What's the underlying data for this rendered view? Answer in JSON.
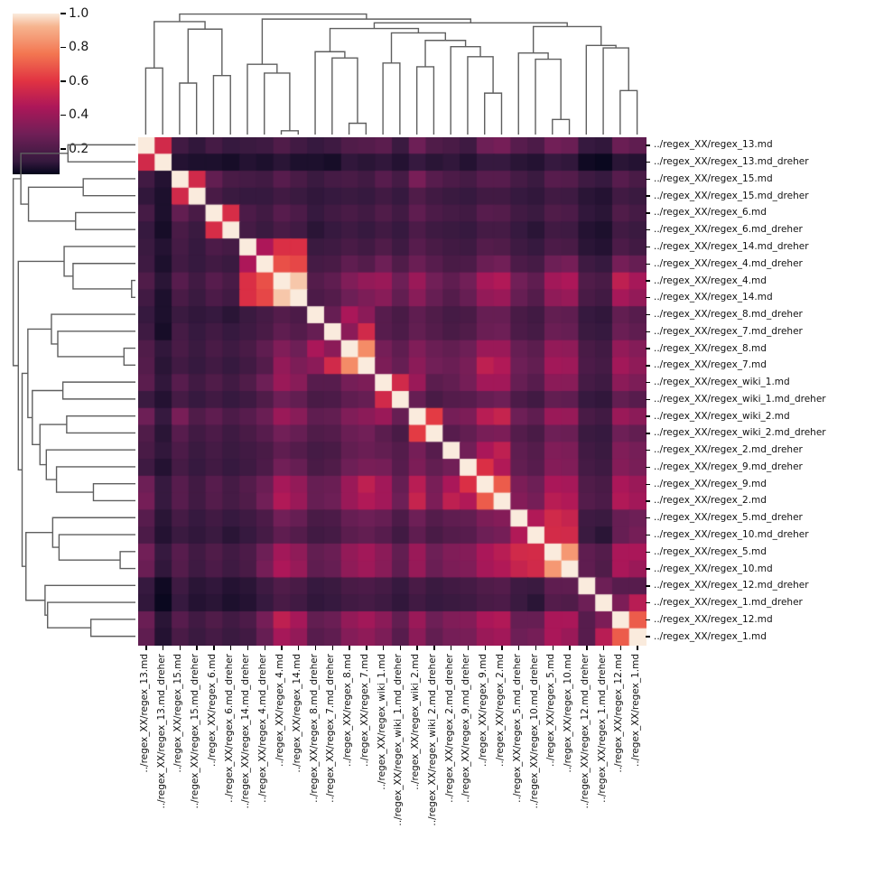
{
  "figure_title": "",
  "colorbar": {
    "tick_labels": [
      "1.0",
      "0.8",
      "0.6",
      "0.4",
      "0.2"
    ],
    "tick_values": [
      1.0,
      0.8,
      0.6,
      0.4,
      0.2
    ]
  },
  "chart_data": {
    "type": "heatmap",
    "subtype": "clustermap",
    "colormap": "rocket",
    "value_range": [
      0.05,
      1.0
    ],
    "legend_position": "top-left-colorbar",
    "grid": false,
    "labels": [
      "../regex_XX/regex_13.md",
      "../regex_XX/regex_13.md_dreher",
      "../regex_XX/regex_15.md",
      "../regex_XX/regex_15.md_dreher",
      "../regex_XX/regex_6.md",
      "../regex_XX/regex_6.md_dreher",
      "../regex_XX/regex_14.md_dreher",
      "../regex_XX/regex_4.md_dreher",
      "../regex_XX/regex_4.md",
      "../regex_XX/regex_14.md",
      "../regex_XX/regex_8.md_dreher",
      "../regex_XX/regex_7.md_dreher",
      "../regex_XX/regex_8.md",
      "../regex_XX/regex_7.md",
      "../regex_XX/regex_wiki_1.md",
      "../regex_XX/regex_wiki_1.md_dreher",
      "../regex_XX/regex_wiki_2.md",
      "../regex_XX/regex_wiki_2.md_dreher",
      "../regex_XX/regex_2.md_dreher",
      "../regex_XX/regex_9.md_dreher",
      "../regex_XX/regex_9.md",
      "../regex_XX/regex_2.md",
      "../regex_XX/regex_5.md_dreher",
      "../regex_XX/regex_10.md_dreher",
      "../regex_XX/regex_5.md",
      "../regex_XX/regex_10.md",
      "../regex_XX/regex_12.md_dreher",
      "../regex_XX/regex_1.md_dreher",
      "../regex_XX/regex_12.md",
      "../regex_XX/regex_1.md"
    ],
    "matrix_upper": [
      [
        1.0,
        0.55,
        0.16,
        0.12,
        0.17,
        0.13,
        0.14,
        0.15,
        0.2,
        0.16,
        0.13,
        0.15,
        0.2,
        0.21,
        0.23,
        0.14,
        0.28,
        0.2,
        0.18,
        0.15,
        0.28,
        0.3,
        0.22,
        0.19,
        0.29,
        0.27,
        0.13,
        0.12,
        0.27,
        0.24
      ],
      [
        1.0,
        0.1,
        0.09,
        0.09,
        0.08,
        0.1,
        0.09,
        0.11,
        0.09,
        0.09,
        0.08,
        0.12,
        0.11,
        0.12,
        0.1,
        0.13,
        0.11,
        0.12,
        0.1,
        0.13,
        0.13,
        0.11,
        0.1,
        0.13,
        0.12,
        0.07,
        0.06,
        0.11,
        0.1
      ],
      [
        1.0,
        0.55,
        0.25,
        0.18,
        0.17,
        0.16,
        0.22,
        0.18,
        0.14,
        0.17,
        0.18,
        0.16,
        0.22,
        0.17,
        0.31,
        0.22,
        0.19,
        0.17,
        0.22,
        0.22,
        0.17,
        0.14,
        0.22,
        0.21,
        0.15,
        0.13,
        0.22,
        0.18
      ],
      [
        1.0,
        0.18,
        0.14,
        0.13,
        0.13,
        0.16,
        0.14,
        0.12,
        0.13,
        0.14,
        0.13,
        0.16,
        0.13,
        0.2,
        0.16,
        0.14,
        0.13,
        0.16,
        0.16,
        0.13,
        0.12,
        0.16,
        0.15,
        0.11,
        0.1,
        0.16,
        0.14
      ],
      [
        1.0,
        0.57,
        0.19,
        0.16,
        0.22,
        0.19,
        0.13,
        0.16,
        0.18,
        0.16,
        0.2,
        0.16,
        0.24,
        0.19,
        0.17,
        0.16,
        0.22,
        0.21,
        0.16,
        0.14,
        0.2,
        0.19,
        0.12,
        0.11,
        0.2,
        0.17
      ],
      [
        1.0,
        0.17,
        0.14,
        0.18,
        0.16,
        0.11,
        0.13,
        0.15,
        0.13,
        0.16,
        0.13,
        0.19,
        0.15,
        0.14,
        0.13,
        0.17,
        0.17,
        0.13,
        0.11,
        0.16,
        0.15,
        0.1,
        0.09,
        0.16,
        0.14
      ],
      [
        1.0,
        0.45,
        0.58,
        0.58,
        0.14,
        0.15,
        0.18,
        0.16,
        0.2,
        0.15,
        0.22,
        0.18,
        0.16,
        0.15,
        0.21,
        0.2,
        0.15,
        0.13,
        0.19,
        0.18,
        0.11,
        0.1,
        0.19,
        0.16
      ],
      [
        1.0,
        0.67,
        0.65,
        0.17,
        0.18,
        0.24,
        0.21,
        0.28,
        0.2,
        0.27,
        0.22,
        0.18,
        0.19,
        0.27,
        0.29,
        0.19,
        0.17,
        0.28,
        0.3,
        0.15,
        0.13,
        0.3,
        0.26
      ],
      [
        1.0,
        0.95,
        0.21,
        0.24,
        0.33,
        0.38,
        0.4,
        0.28,
        0.4,
        0.29,
        0.24,
        0.29,
        0.43,
        0.46,
        0.29,
        0.24,
        0.42,
        0.45,
        0.2,
        0.18,
        0.5,
        0.43
      ],
      [
        1.0,
        0.19,
        0.21,
        0.28,
        0.32,
        0.35,
        0.25,
        0.35,
        0.26,
        0.21,
        0.26,
        0.38,
        0.4,
        0.26,
        0.21,
        0.37,
        0.39,
        0.18,
        0.16,
        0.43,
        0.38
      ],
      [
        1.0,
        0.26,
        0.44,
        0.36,
        0.22,
        0.18,
        0.24,
        0.2,
        0.17,
        0.18,
        0.26,
        0.26,
        0.18,
        0.16,
        0.25,
        0.24,
        0.13,
        0.12,
        0.25,
        0.22
      ],
      [
        1.0,
        0.36,
        0.55,
        0.22,
        0.19,
        0.25,
        0.21,
        0.18,
        0.2,
        0.27,
        0.28,
        0.19,
        0.17,
        0.27,
        0.26,
        0.14,
        0.13,
        0.27,
        0.24
      ],
      [
        1.0,
        0.82,
        0.3,
        0.24,
        0.33,
        0.27,
        0.25,
        0.28,
        0.4,
        0.4,
        0.26,
        0.23,
        0.38,
        0.37,
        0.18,
        0.16,
        0.38,
        0.34
      ],
      [
        1.0,
        0.32,
        0.26,
        0.36,
        0.29,
        0.27,
        0.31,
        0.5,
        0.46,
        0.28,
        0.25,
        0.42,
        0.41,
        0.19,
        0.17,
        0.42,
        0.37
      ],
      [
        1.0,
        0.55,
        0.4,
        0.23,
        0.25,
        0.3,
        0.42,
        0.42,
        0.26,
        0.22,
        0.36,
        0.35,
        0.17,
        0.15,
        0.36,
        0.32
      ],
      [
        1.0,
        0.26,
        0.18,
        0.21,
        0.22,
        0.26,
        0.28,
        0.19,
        0.16,
        0.25,
        0.24,
        0.13,
        0.12,
        0.25,
        0.22
      ],
      [
        1.0,
        0.62,
        0.3,
        0.32,
        0.48,
        0.52,
        0.28,
        0.24,
        0.4,
        0.39,
        0.18,
        0.16,
        0.4,
        0.36
      ],
      [
        1.0,
        0.22,
        0.25,
        0.31,
        0.32,
        0.21,
        0.18,
        0.28,
        0.27,
        0.14,
        0.13,
        0.28,
        0.25
      ],
      [
        1.0,
        0.29,
        0.44,
        0.5,
        0.24,
        0.21,
        0.33,
        0.32,
        0.16,
        0.14,
        0.33,
        0.3
      ],
      [
        1.0,
        0.58,
        0.46,
        0.25,
        0.22,
        0.34,
        0.33,
        0.17,
        0.15,
        0.34,
        0.31
      ],
      [
        1.0,
        0.7,
        0.32,
        0.28,
        0.44,
        0.43,
        0.2,
        0.18,
        0.44,
        0.4
      ],
      [
        1.0,
        0.34,
        0.3,
        0.48,
        0.46,
        0.21,
        0.19,
        0.46,
        0.42
      ],
      [
        1.0,
        0.46,
        0.55,
        0.52,
        0.15,
        0.14,
        0.26,
        0.28
      ],
      [
        1.0,
        0.56,
        0.55,
        0.14,
        0.11,
        0.26,
        0.3
      ],
      [
        1.0,
        0.85,
        0.24,
        0.21,
        0.44,
        0.44
      ],
      [
        1.0,
        0.24,
        0.2,
        0.44,
        0.4
      ],
      [
        1.0,
        0.28,
        0.22,
        0.22
      ],
      [
        1.0,
        0.32,
        0.48
      ],
      [
        1.0,
        0.7
      ],
      [
        1.0
      ]
    ],
    "linkage": [
      [
        8,
        9,
        0.03
      ],
      [
        12,
        13,
        0.09
      ],
      [
        24,
        25,
        0.12
      ],
      [
        20,
        21,
        0.33
      ],
      [
        28,
        29,
        0.35
      ],
      [
        2,
        3,
        0.41
      ],
      [
        4,
        5,
        0.47
      ],
      [
        7,
        30,
        0.49
      ],
      [
        0,
        1,
        0.53
      ],
      [
        16,
        17,
        0.54
      ],
      [
        6,
        37,
        0.56
      ],
      [
        14,
        15,
        0.57
      ],
      [
        23,
        32,
        0.6
      ],
      [
        11,
        31,
        0.61
      ],
      [
        19,
        33,
        0.62
      ],
      [
        22,
        42,
        0.65
      ],
      [
        10,
        43,
        0.66
      ],
      [
        27,
        34,
        0.69
      ],
      [
        18,
        44,
        0.7
      ],
      [
        26,
        47,
        0.71
      ],
      [
        39,
        48,
        0.75
      ],
      [
        41,
        50,
        0.81
      ],
      [
        35,
        36,
        0.84
      ],
      [
        46,
        51,
        0.845
      ],
      [
        45,
        49,
        0.86
      ],
      [
        53,
        54,
        0.89
      ],
      [
        40,
        55,
        0.92
      ],
      [
        38,
        52,
        0.9
      ],
      [
        57,
        56,
        0.96
      ]
    ]
  }
}
